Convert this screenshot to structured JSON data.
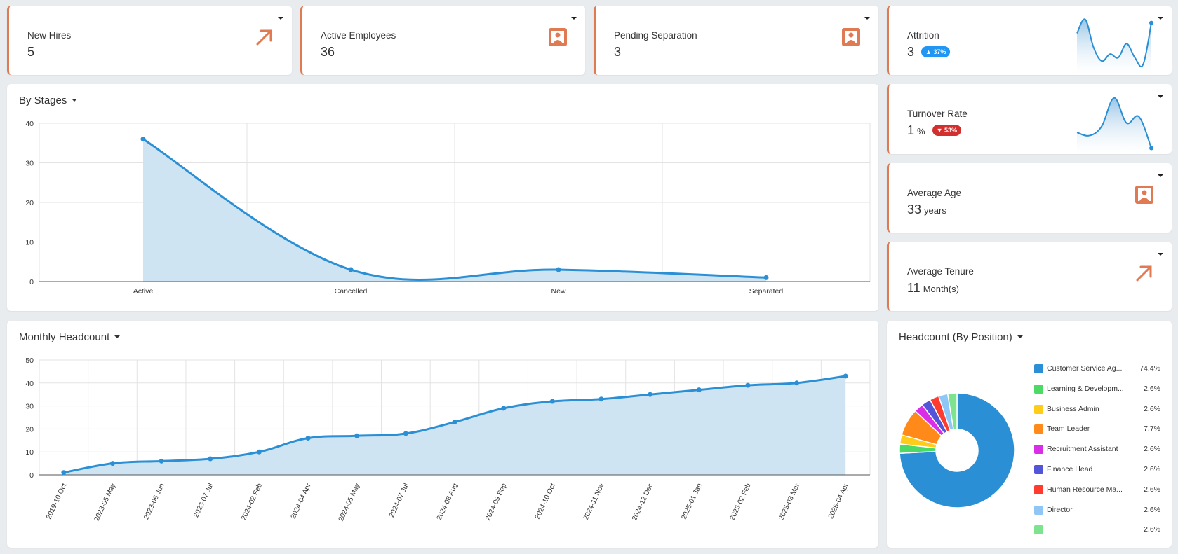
{
  "colors": {
    "accent": "#e07a52",
    "line": "#2a8fd4",
    "fill": "#cfe4f3",
    "badge_up": "#2196f3",
    "badge_down": "#d32f2f"
  },
  "kpis": {
    "new_hires": {
      "label": "New Hires",
      "value": "5",
      "icon": "arrow-up-right-icon"
    },
    "active_employees": {
      "label": "Active Employees",
      "value": "36",
      "icon": "person-portrait-icon"
    },
    "pending_separation": {
      "label": "Pending Separation",
      "value": "3",
      "icon": "person-portrait-icon"
    },
    "attrition": {
      "label": "Attrition",
      "value": "3",
      "badge": "▲ 37%",
      "spark": [
        22,
        30,
        14,
        6,
        10,
        8,
        16,
        8,
        4,
        28
      ]
    },
    "turnover_rate": {
      "label": "Turnover Rate",
      "value": "1",
      "unit": "%",
      "badge": "▼ 53%",
      "spark": [
        12,
        10,
        16,
        34,
        18,
        22,
        2
      ]
    },
    "average_age": {
      "label": "Average Age",
      "value": "33",
      "unit": "years",
      "icon": "person-portrait-icon"
    },
    "average_tenure": {
      "label": "Average Tenure",
      "value": "11",
      "unit": "Month(s)",
      "icon": "arrow-up-right-icon"
    }
  },
  "stages": {
    "title": "By Stages",
    "chart_data": {
      "type": "area",
      "categories": [
        "Active",
        "Cancelled",
        "New",
        "Separated"
      ],
      "values": [
        36,
        3,
        3,
        1
      ],
      "ylim": [
        0,
        40
      ],
      "yticks": [
        "0",
        "10",
        "20",
        "30",
        "40"
      ],
      "grid": true
    }
  },
  "monthly": {
    "title": "Monthly Headcount",
    "chart_data": {
      "type": "area",
      "categories": [
        "2019-10 Oct",
        "2023-05 May",
        "2023-06 Jun",
        "2023-07 Jul",
        "2024-02 Feb",
        "2024-04 Apr",
        "2024-05 May",
        "2024-07 Jul",
        "2024-08 Aug",
        "2024-09 Sep",
        "2024-10 Oct",
        "2024-11 Nov",
        "2024-12 Dec",
        "2025-01 Jan",
        "2025-02 Feb",
        "2025-03 Mar",
        "2025-04 Apr"
      ],
      "values": [
        1,
        5,
        6,
        7,
        10,
        16,
        17,
        18,
        23,
        29,
        32,
        33,
        35,
        37,
        39,
        40,
        43
      ],
      "ylim": [
        0,
        50
      ],
      "yticks": [
        "0",
        "10",
        "20",
        "30",
        "40",
        "50"
      ],
      "grid": true
    }
  },
  "positions": {
    "title": "Headcount (By Position)",
    "chart_data": {
      "type": "pie",
      "labels": [
        "Customer Service Ag...",
        "Learning & Developm...",
        "Business Admin",
        "Team Leader",
        "Recruitment Assistant",
        "Finance Head",
        "Human Resource Ma...",
        "Director",
        ""
      ],
      "values": [
        74.4,
        2.6,
        2.6,
        7.7,
        2.6,
        2.6,
        2.6,
        2.6,
        2.6
      ],
      "percent_labels": [
        "74.4%",
        "2.6%",
        "2.6%",
        "7.7%",
        "2.6%",
        "2.6%",
        "2.6%",
        "2.6%",
        "2.6%"
      ],
      "colors": [
        "#2a8fd4",
        "#4cd964",
        "#ffcc1a",
        "#ff8a1a",
        "#d82ee6",
        "#5255d8",
        "#ff3b30",
        "#8ec7f5",
        "#7de38f"
      ],
      "legend_position": "right"
    }
  }
}
